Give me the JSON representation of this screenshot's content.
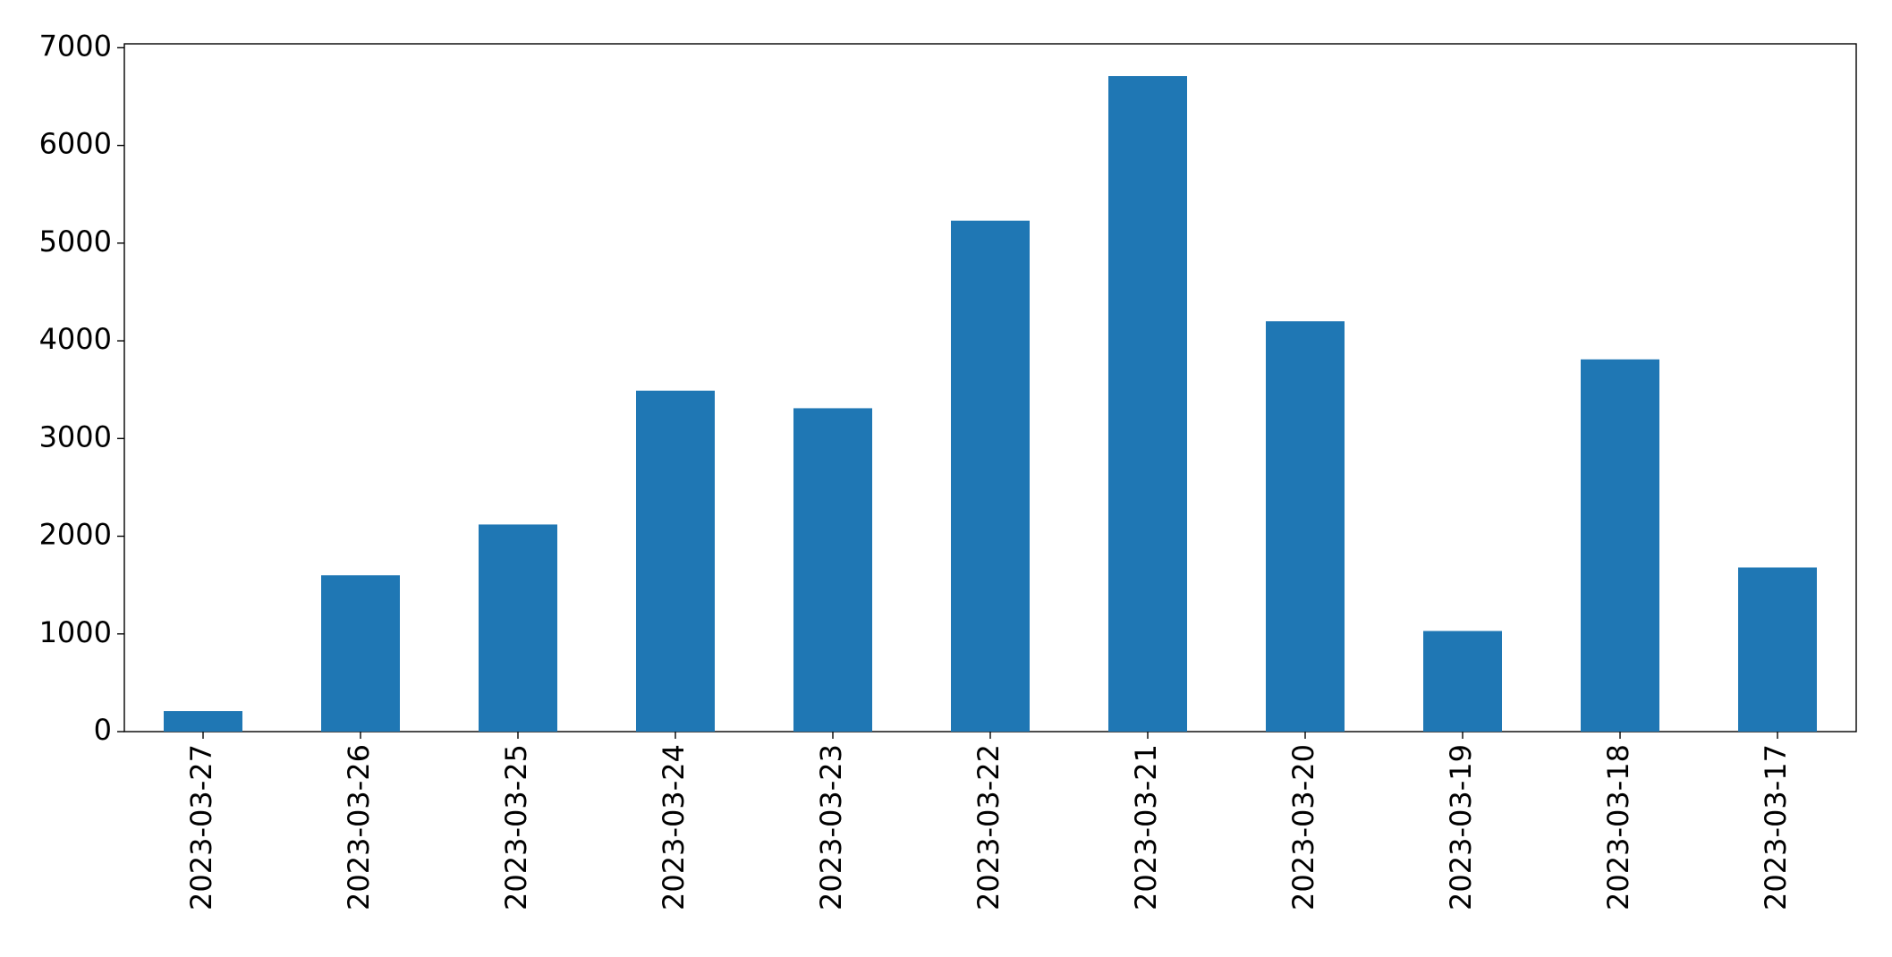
{
  "chart_data": {
    "type": "bar",
    "categories": [
      "2023-03-27",
      "2023-03-26",
      "2023-03-25",
      "2023-03-24",
      "2023-03-23",
      "2023-03-22",
      "2023-03-21",
      "2023-03-20",
      "2023-03-19",
      "2023-03-18",
      "2023-03-17"
    ],
    "values": [
      210,
      1600,
      2120,
      3490,
      3310,
      5230,
      6710,
      4200,
      1030,
      3810,
      1680
    ],
    "color": "#1f77b4",
    "ylim": [
      0,
      7040
    ],
    "yticks": [
      0,
      1000,
      2000,
      3000,
      4000,
      5000,
      6000,
      7000
    ],
    "grid": false
  }
}
